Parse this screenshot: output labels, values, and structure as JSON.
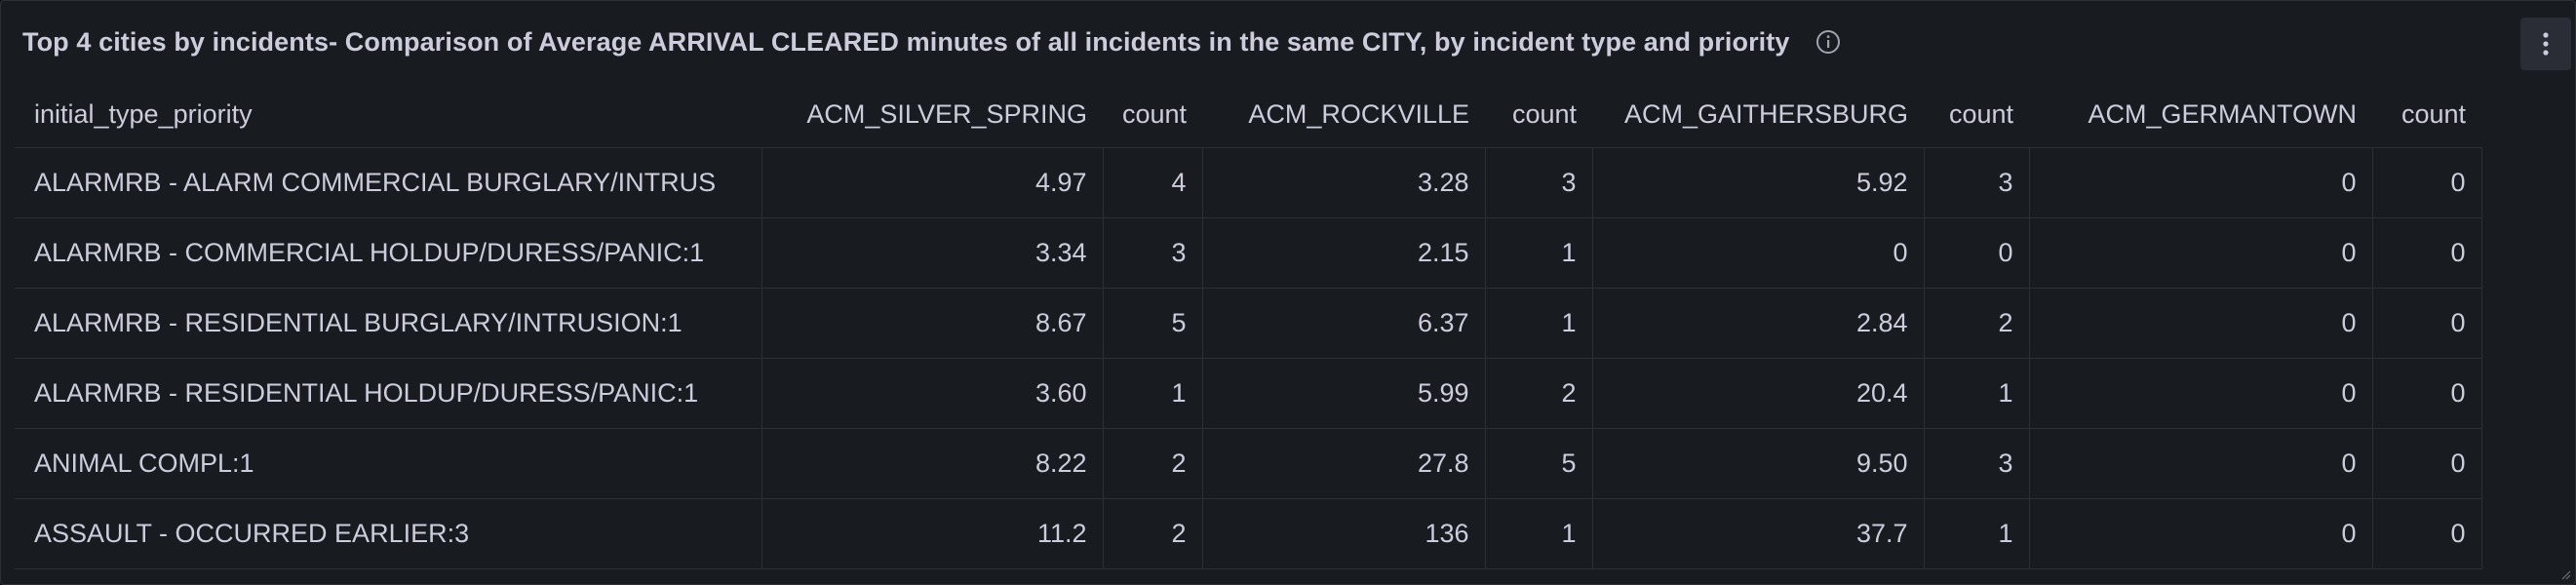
{
  "panel": {
    "title": "Top 4 cities by incidents- Comparison of Average ARRIVAL CLEARED minutes of all incidents in the same CITY, by incident type and priority",
    "info_icon": "info-icon",
    "menu_icon": "kebab-menu-icon"
  },
  "table": {
    "columns": [
      "initial_type_priority",
      "ACM_SILVER_SPRING",
      "count",
      "ACM_ROCKVILLE",
      "count",
      "ACM_GAITHERSBURG",
      "count",
      "ACM_GERMANTOWN",
      "count"
    ],
    "rows": [
      [
        "ALARMRB - ALARM COMMERCIAL BURGLARY/INTRUS",
        "4.97",
        "4",
        "3.28",
        "3",
        "5.92",
        "3",
        "0",
        "0"
      ],
      [
        "ALARMRB - COMMERCIAL HOLDUP/DURESS/PANIC:1",
        "3.34",
        "3",
        "2.15",
        "1",
        "0",
        "0",
        "0",
        "0"
      ],
      [
        "ALARMRB - RESIDENTIAL BURGLARY/INTRUSION:1",
        "8.67",
        "5",
        "6.37",
        "1",
        "2.84",
        "2",
        "0",
        "0"
      ],
      [
        "ALARMRB - RESIDENTIAL HOLDUP/DURESS/PANIC:1",
        "3.60",
        "1",
        "5.99",
        "2",
        "20.4",
        "1",
        "0",
        "0"
      ],
      [
        "ANIMAL COMPL:1",
        "8.22",
        "2",
        "27.8",
        "5",
        "9.50",
        "3",
        "0",
        "0"
      ],
      [
        "ASSAULT - OCCURRED EARLIER:3",
        "11.2",
        "2",
        "136",
        "1",
        "37.7",
        "1",
        "0",
        "0"
      ]
    ]
  }
}
